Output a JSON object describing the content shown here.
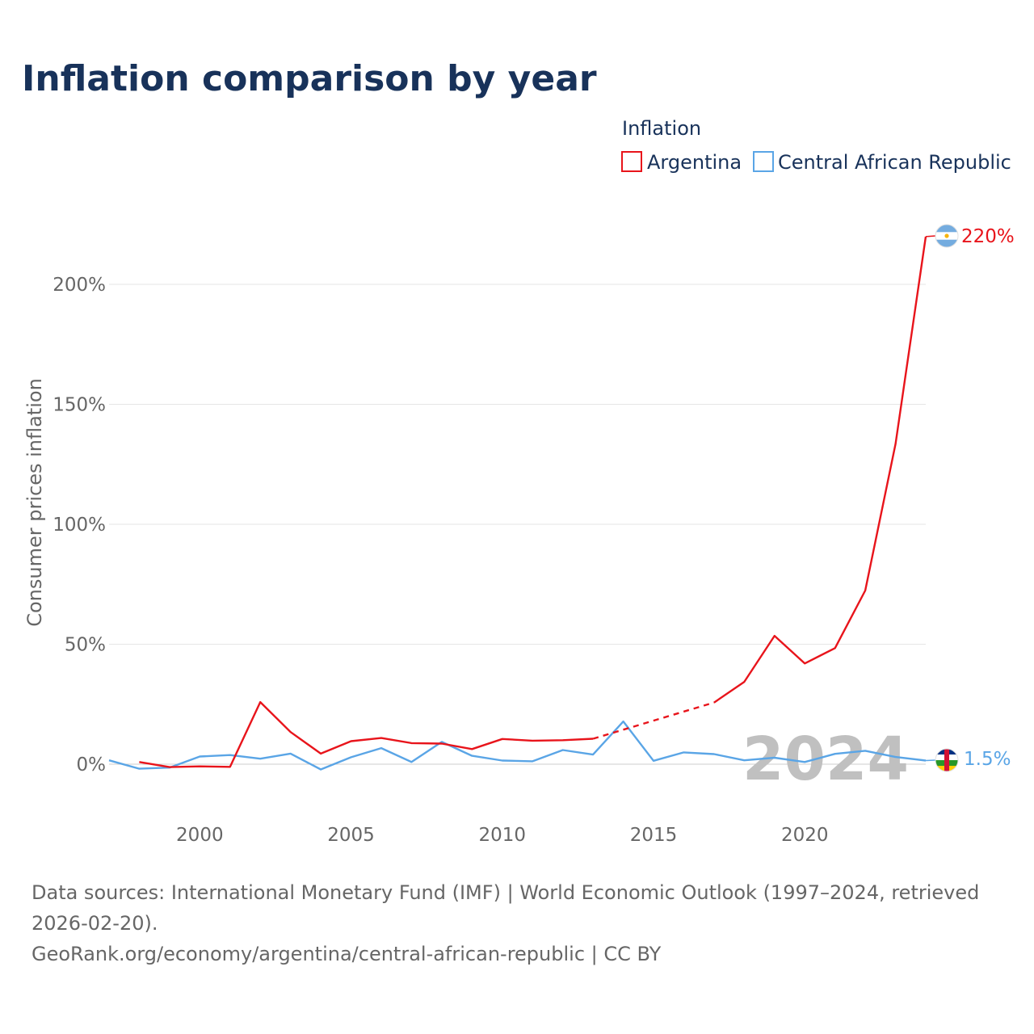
{
  "title": "Inflation comparison by year",
  "legend": {
    "title": "Inflation",
    "items": [
      "Argentina",
      "Central African Republic"
    ]
  },
  "year_watermark": "2024",
  "end_labels": {
    "argentina": "220%",
    "car": "1.5%"
  },
  "colors": {
    "argentina": "#e8141b",
    "car": "#5aa5e6",
    "title": "#18325a",
    "axis_text": "#666666",
    "grid": "#e6e6e6",
    "watermark": "#c0c0c0"
  },
  "footer": {
    "sources": "Data sources: International Monetary Fund (IMF) | World Economic Outlook (1997–2024, retrieved 2026-02-20).",
    "credit": "GeoRank.org/economy/argentina/central-african-republic | CC BY"
  },
  "chart_data": {
    "type": "line",
    "title": "Inflation comparison by year",
    "xlabel": "",
    "ylabel": "Consumer prices inflation",
    "xlim": [
      1997,
      2024
    ],
    "ylim": [
      -20,
      230
    ],
    "x_ticks": [
      2000,
      2005,
      2010,
      2015,
      2020
    ],
    "x_tick_labels": [
      "2000",
      "2005",
      "2010",
      "2015",
      "2020"
    ],
    "y_ticks": [
      0,
      50,
      100,
      150,
      200
    ],
    "y_tick_labels": [
      "0%",
      "50%",
      "100%",
      "150%",
      "200%"
    ],
    "series": [
      {
        "name": "Argentina",
        "x": [
          1998,
          1999,
          2000,
          2001,
          2002,
          2003,
          2004,
          2005,
          2006,
          2007,
          2008,
          2009,
          2010,
          2011,
          2012,
          2013,
          2014,
          2015,
          2016,
          2017,
          2018,
          2019,
          2020,
          2021,
          2022,
          2023,
          2024
        ],
        "values": [
          0.9,
          -1.2,
          -0.9,
          -1.1,
          25.9,
          13.4,
          4.4,
          9.6,
          10.9,
          8.8,
          8.6,
          6.3,
          10.5,
          9.8,
          10.0,
          10.6,
          null,
          null,
          null,
          25.7,
          34.3,
          53.5,
          42.0,
          48.4,
          72.4,
          133.5,
          219.9
        ],
        "estimated_gap": {
          "from": 2013,
          "to": 2017
        }
      },
      {
        "name": "Central African Republic",
        "x": [
          1997,
          1998,
          1999,
          2000,
          2001,
          2002,
          2003,
          2004,
          2005,
          2006,
          2007,
          2008,
          2009,
          2010,
          2011,
          2012,
          2013,
          2014,
          2015,
          2016,
          2017,
          2018,
          2019,
          2020,
          2021,
          2022,
          2023,
          2024
        ],
        "values": [
          1.6,
          -1.9,
          -1.4,
          3.2,
          3.8,
          2.3,
          4.4,
          -2.2,
          2.9,
          6.7,
          0.9,
          9.3,
          3.5,
          1.5,
          1.2,
          5.9,
          4.0,
          17.8,
          1.4,
          4.9,
          4.2,
          1.6,
          2.7,
          0.9,
          4.3,
          5.6,
          3.0,
          1.5
        ]
      }
    ]
  }
}
